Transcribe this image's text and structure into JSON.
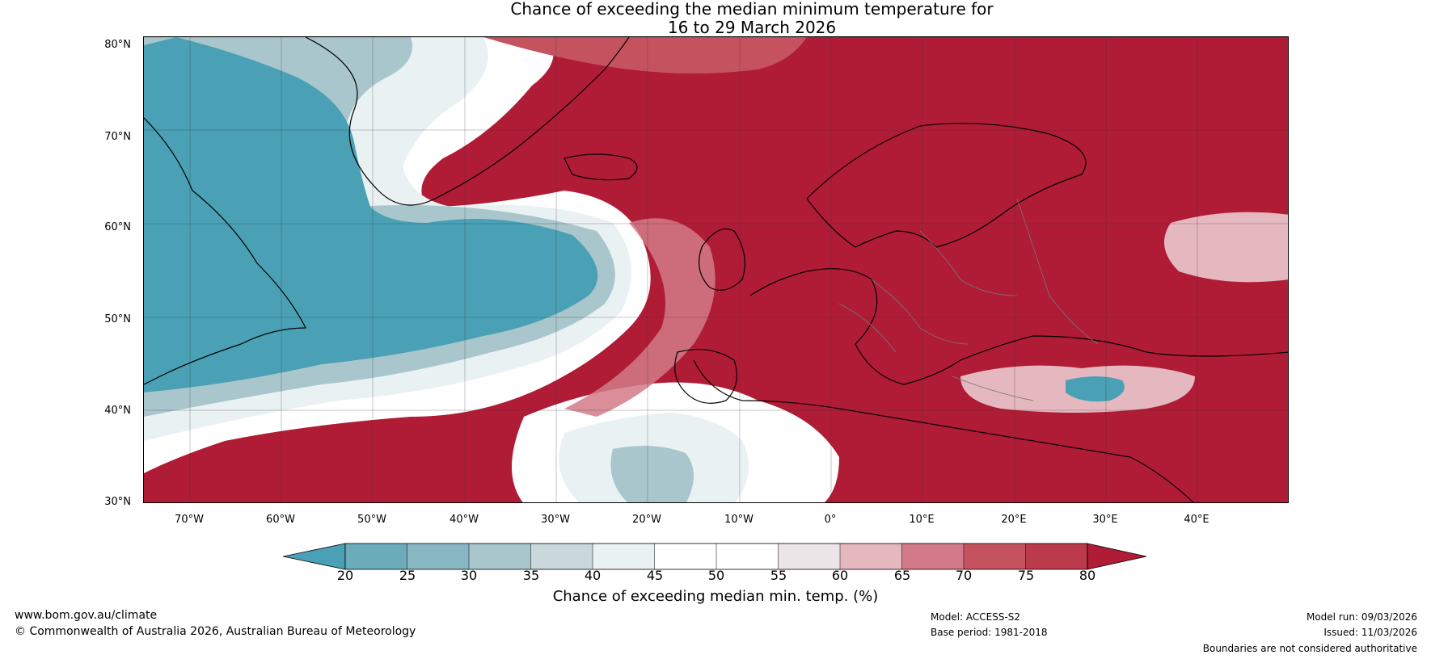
{
  "title": {
    "line1": "Chance of exceeding the median minimum temperature for",
    "line2": "16 to 29 March 2026"
  },
  "map": {
    "lat_labels": [
      "80°N",
      "70°N",
      "60°N",
      "50°N",
      "40°N",
      "30°N"
    ],
    "lon_labels": [
      "70°W",
      "60°W",
      "50°W",
      "40°W",
      "30°W",
      "20°W",
      "10°W",
      "0°",
      "10°E",
      "20°E",
      "30°E",
      "40°E"
    ],
    "colors": {
      "deep_blue": "#4aa0b4",
      "mid_blue": "#6cabba",
      "light_blue": "#a9c6cc",
      "pale": "#e9f1f3",
      "white": "#ffffff",
      "pink_light": "#e4b8be",
      "pink": "#d27a87",
      "red_mid": "#c5525f",
      "deep_red": "#b01c36"
    }
  },
  "colorbar": {
    "ticks": [
      "20",
      "25",
      "30",
      "35",
      "40",
      "45",
      "50",
      "55",
      "60",
      "65",
      "70",
      "75",
      "80"
    ],
    "colors": [
      "#4aa0b4",
      "#6cabba",
      "#88b6c2",
      "#a9c6cc",
      "#c9d8db",
      "#e9f1f3",
      "#ffffff",
      "#ffffff",
      "#ece5e7",
      "#e4b8be",
      "#d27a87",
      "#c5525f",
      "#bb3a4b",
      "#b01c36"
    ],
    "label": "Chance of exceeding median min. temp. (%)"
  },
  "footer": {
    "website": "www.bom.gov.au/climate",
    "copyright": "© Commonwealth of Australia 2026, Australian Bureau of Meteorology",
    "model": "Model: ACCESS-S2",
    "base_period": "Base period: 1981-2018",
    "model_run": "Model run: 09/03/2026",
    "issued": "Issued: 11/03/2026",
    "disclaimer": "Boundaries are not considered authoritative"
  }
}
